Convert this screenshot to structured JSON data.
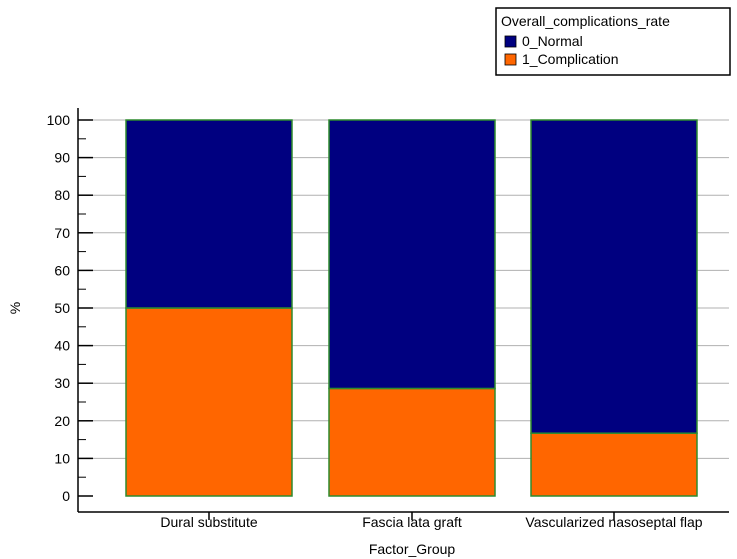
{
  "chart_data": {
    "type": "bar",
    "stacked": true,
    "percent": true,
    "title": "",
    "xlabel": "Factor_Group",
    "ylabel": "%",
    "ylim": [
      0,
      100
    ],
    "yticks": [
      0,
      10,
      20,
      30,
      40,
      50,
      60,
      70,
      80,
      90,
      100
    ],
    "grid": true,
    "legend": {
      "title": "Overall_complications_rate",
      "position": "top-right"
    },
    "categories": [
      "Dural substitute",
      "Fascia lata graft",
      "Vascularized nasoseptal flap"
    ],
    "series": [
      {
        "name": "1_Complication",
        "color": "#ff6600",
        "values": [
          50.0,
          28.6,
          16.7
        ]
      },
      {
        "name": "0_Normal",
        "color": "#000080",
        "values": [
          50.0,
          71.4,
          83.3
        ]
      }
    ],
    "legend_order": [
      "0_Normal",
      "1_Complication"
    ],
    "bar_border_color": "#2e8b2e"
  }
}
